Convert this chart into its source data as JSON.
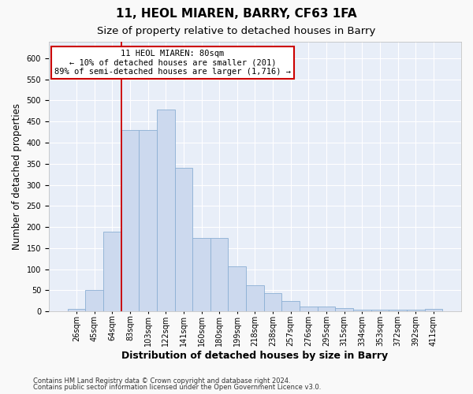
{
  "title": "11, HEOL MIAREN, BARRY, CF63 1FA",
  "subtitle": "Size of property relative to detached houses in Barry",
  "xlabel": "Distribution of detached houses by size in Barry",
  "ylabel": "Number of detached properties",
  "bar_color": "#ccd9ee",
  "bar_edge_color": "#8bafd4",
  "categories": [
    "26sqm",
    "45sqm",
    "64sqm",
    "83sqm",
    "103sqm",
    "122sqm",
    "141sqm",
    "160sqm",
    "180sqm",
    "199sqm",
    "218sqm",
    "238sqm",
    "257sqm",
    "276sqm",
    "295sqm",
    "315sqm",
    "334sqm",
    "353sqm",
    "372sqm",
    "392sqm",
    "411sqm"
  ],
  "values": [
    6,
    51,
    190,
    430,
    430,
    478,
    340,
    175,
    175,
    107,
    62,
    44,
    25,
    12,
    12,
    8,
    5,
    5,
    5,
    5,
    6
  ],
  "ylim": [
    0,
    640
  ],
  "yticks": [
    0,
    50,
    100,
    150,
    200,
    250,
    300,
    350,
    400,
    450,
    500,
    550,
    600
  ],
  "vline_index": 3,
  "annotation_title": "11 HEOL MIAREN: 80sqm",
  "annotation_line1": "← 10% of detached houses are smaller (201)",
  "annotation_line2": "89% of semi-detached houses are larger (1,716) →",
  "footer1": "Contains HM Land Registry data © Crown copyright and database right 2024.",
  "footer2": "Contains public sector information licensed under the Open Government Licence v3.0.",
  "fig_bg_color": "#f9f9f9",
  "axes_bg_color": "#e8eef8",
  "annotation_bg": "#ffffff",
  "annotation_edge": "#cc0000",
  "vline_color": "#cc0000",
  "grid_color": "#ffffff",
  "title_fontsize": 11,
  "subtitle_fontsize": 9.5,
  "ylabel_fontsize": 8.5,
  "xlabel_fontsize": 9,
  "tick_fontsize": 7,
  "footer_fontsize": 6,
  "annot_fontsize": 7.5
}
